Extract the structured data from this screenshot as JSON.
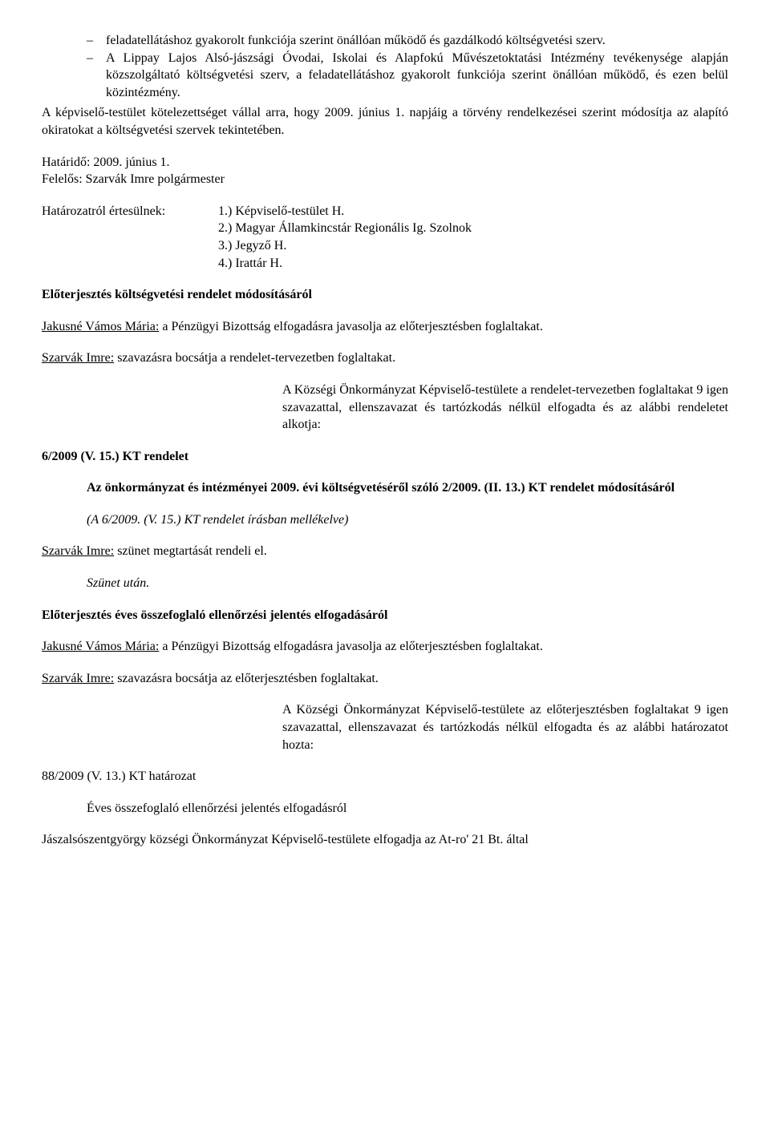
{
  "list": {
    "item1": "feladatellátáshoz gyakorolt funkciója szerint önállóan működő és gazdálkodó költségvetési szerv.",
    "item2": "A Lippay Lajos Alsó-jászsági Óvodai, Iskolai és Alapfokú Művészetoktatási Intézmény tevékenysége alapján közszolgáltató költségvetési szerv, a feladatellátáshoz gyakorolt funkciója szerint önállóan működő, és ezen belül közintézmény."
  },
  "p1": "A képviselő-testület kötelezettséget vállal arra, hogy 2009. június 1. napjáig a törvény rendelkezései szerint módosítja az alapító okiratokat a költségvetési szervek tekintetében.",
  "deadline": "Határidő: 2009. június 1.",
  "responsible": "Felelős: Szarvák Imre polgármester",
  "notifyLabel": "Határozatról értesülnek:",
  "notify": {
    "n1": "1.) Képviselő-testület H.",
    "n2": "2.) Magyar Államkincstár Regionális Ig. Szolnok",
    "n3": "3.) Jegyző H.",
    "n4": "4.) Irattár H."
  },
  "h1": "Előterjesztés költségvetési rendelet módosításáról",
  "jakusne_name": "Jakusné Vámos Mária:",
  "jakusne_text": " a Pénzügyi Bizottság elfogadásra javasolja az előterjesztésben foglaltakat.",
  "szarvak_name": "Szarvák Imre:",
  "szarvak_vote1": " szavazásra bocsátja a rendelet-tervezetben foglaltakat.",
  "vote1": "A Községi Önkormányzat Képviselő-testülete a rendelet-tervezetben foglaltakat 9 igen szavazattal, ellenszavazat és tartózkodás nélkül elfogadta és az alábbi rendeletet alkotja:",
  "decree_no": "6/2009 (V. 15.) KT rendelet",
  "decree_title": "Az önkormányzat és intézményei 2009. évi költségvetéséről szóló 2/2009. (II. 13.) KT rendelet módosításáról",
  "decree_note": "(A 6/2009. (V. 15.) KT rendelet írásban mellékelve)",
  "szarvak_break": " szünet megtartását rendeli el.",
  "after_break": "Szünet után.",
  "h2": "Előterjesztés éves összefoglaló ellenőrzési jelentés elfogadásáról",
  "szarvak_vote2": " szavazásra bocsátja az előterjesztésben foglaltakat.",
  "vote2": "A Községi Önkormányzat Képviselő-testülete az előterjesztésben foglaltakat 9 igen szavazattal, ellenszavazat és tartózkodás nélkül elfogadta és az alábbi határozatot hozta:",
  "resolution_no": "88/2009 (V. 13.) KT határozat",
  "resolution_title": "Éves összefoglaló ellenőrzési jelentés elfogadásról",
  "final": "Jászalsószentgyörgy községi Önkormányzat Képviselő-testülete elfogadja az At-ro' 21 Bt. által"
}
